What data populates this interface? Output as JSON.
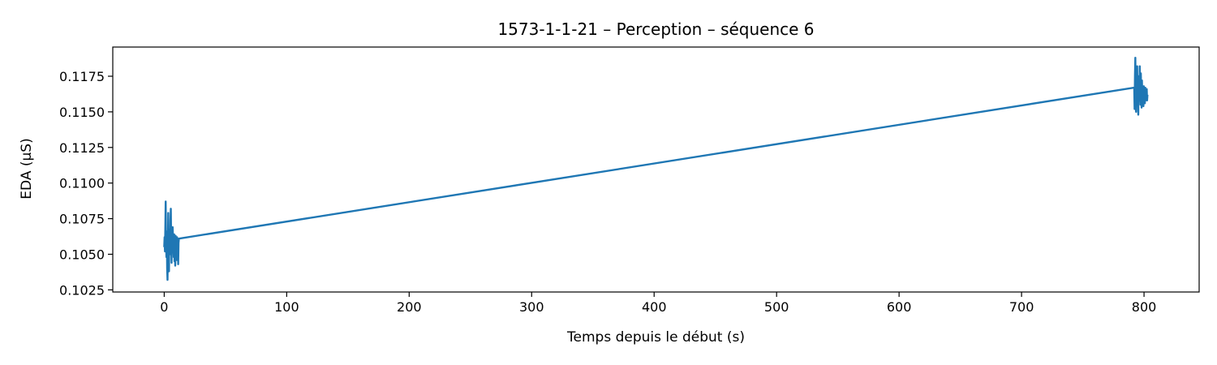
{
  "chart_data": {
    "type": "line",
    "title": "1573-1-1-21 – Perception – séquence 6",
    "xlabel": "Temps depuis le début (s)",
    "ylabel": "EDA (µS)",
    "xlim": [
      -42,
      845
    ],
    "ylim": [
      0.10235,
      0.11955
    ],
    "xticks": [
      0,
      100,
      200,
      300,
      400,
      500,
      600,
      700,
      800
    ],
    "xtick_labels": [
      "0",
      "100",
      "200",
      "300",
      "400",
      "500",
      "600",
      "700",
      "800"
    ],
    "yticks": [
      0.1025,
      0.105,
      0.1075,
      0.11,
      0.1125,
      0.115,
      0.1175
    ],
    "ytick_labels": [
      "0.1025",
      "0.1050",
      "0.1075",
      "0.1100",
      "0.1125",
      "0.1150",
      "0.1175"
    ],
    "grid": false,
    "line_color": "#1f77b4",
    "series": [
      {
        "x": [
          0.0,
          0.3,
          0.6,
          0.9,
          1.2,
          1.5,
          1.8,
          2.1,
          2.4,
          2.7,
          3.0,
          3.3,
          3.6,
          3.9,
          4.2,
          4.5,
          4.8,
          5.1,
          5.4,
          5.7,
          6.0,
          6.3,
          6.6,
          6.9,
          7.2,
          7.5,
          7.8,
          8.1,
          8.4,
          8.7,
          9.0,
          9.3,
          9.6,
          9.9,
          10.2,
          10.5,
          10.8,
          11.1,
          11.4,
          11.7,
          12.0,
          792.0,
          792.3,
          792.6,
          792.9,
          793.2,
          793.5,
          793.8,
          794.1,
          794.4,
          794.7,
          795.0,
          795.3,
          795.6,
          795.9,
          796.2,
          796.5,
          796.8,
          797.1,
          797.4,
          797.7,
          798.0,
          798.3,
          798.6,
          798.9,
          799.2,
          799.5,
          799.8,
          800.1,
          800.4,
          800.7,
          801.0,
          801.3,
          801.6,
          801.9,
          802.2,
          802.5,
          802.8
        ],
        "y": [
          0.1055,
          0.1062,
          0.1052,
          0.1068,
          0.1087,
          0.1058,
          0.1048,
          0.1066,
          0.104,
          0.1032,
          0.1056,
          0.1079,
          0.1046,
          0.1038,
          0.1067,
          0.106,
          0.105,
          0.1074,
          0.1082,
          0.1058,
          0.1044,
          0.1066,
          0.1052,
          0.1069,
          0.1061,
          0.1056,
          0.1048,
          0.1064,
          0.1045,
          0.1055,
          0.1042,
          0.1063,
          0.105,
          0.1058,
          0.1046,
          0.1062,
          0.1055,
          0.1061,
          0.1043,
          0.1058,
          0.1061,
          0.1167,
          0.1152,
          0.1176,
          0.1188,
          0.116,
          0.115,
          0.1171,
          0.1165,
          0.1182,
          0.1158,
          0.1162,
          0.1148,
          0.1175,
          0.117,
          0.1158,
          0.1182,
          0.1163,
          0.1155,
          0.1177,
          0.1161,
          0.1153,
          0.1172,
          0.1158,
          0.1166,
          0.116,
          0.1154,
          0.1168,
          0.1159,
          0.1164,
          0.1156,
          0.1167,
          0.1158,
          0.1163,
          0.116,
          0.1166,
          0.1158,
          0.1162
        ]
      }
    ]
  }
}
